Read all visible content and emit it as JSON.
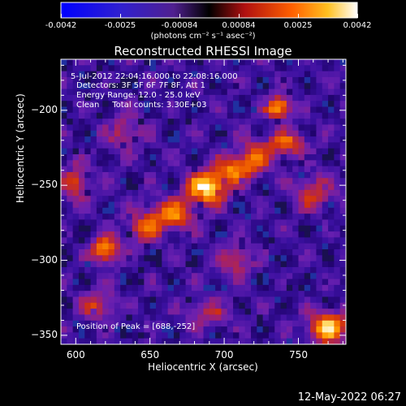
{
  "colors": {
    "colormap": [
      "#000000",
      "#1a0060",
      "#3a10a0",
      "#6a20b0",
      "#a02070",
      "#d03010",
      "#f06000",
      "#ff9a00",
      "#ffd040",
      "#ffffff"
    ],
    "colorbar_left": "#0000ff",
    "colorbar_right": "#ffffff"
  },
  "colorbar": {
    "ticks": [
      "-0.0042",
      "-0.0025",
      "-0.00084",
      "0.00084",
      "0.0025",
      "0.0042"
    ],
    "units_label": "(photons cm⁻² s⁻¹ asec⁻²)"
  },
  "annotations": {
    "time_range": "5-Jul-2012 22:04:16.000 to 22:08:16.000",
    "detectors": "Detectors: 3F 5F 6F 7F 8F, Att 1",
    "energy_range": "Energy Range: 12.0 - 25.0 keV",
    "clean_counts": "Clean     Total counts: 3.30E+03",
    "peak": "Position of Peak = [688,-252]"
  },
  "footer": {
    "timestamp": "12-May-2022 06:27"
  },
  "chart_data": {
    "type": "heatmap",
    "title": "Reconstructed RHESSI Image",
    "xlabel": "Heliocentric X (arcsec)",
    "ylabel": "Heliocentric Y (arcsec)",
    "xlim": [
      590,
      782
    ],
    "ylim": [
      -356,
      -166
    ],
    "xticks": [
      600,
      650,
      700,
      750
    ],
    "yticks": [
      -200,
      -250,
      -300,
      -350
    ],
    "xtick_labels": [
      "600",
      "650",
      "700",
      "750"
    ],
    "ytick_labels": [
      "−200",
      "−250",
      "−300",
      "−350"
    ],
    "grid": false,
    "peak": [
      688,
      -252
    ],
    "sources": [
      {
        "x": 688,
        "y": -252,
        "sx": 9,
        "sy": 7,
        "amp": 1.0
      },
      {
        "x": 705,
        "y": -240,
        "sx": 8,
        "sy": 6,
        "amp": 0.6
      },
      {
        "x": 665,
        "y": -270,
        "sx": 10,
        "sy": 7,
        "amp": 0.65
      },
      {
        "x": 720,
        "y": -232,
        "sx": 8,
        "sy": 8,
        "amp": 0.5
      },
      {
        "x": 742,
        "y": -222,
        "sx": 9,
        "sy": 6,
        "amp": 0.55
      },
      {
        "x": 737,
        "y": -198,
        "sx": 6,
        "sy": 5,
        "amp": 0.8
      },
      {
        "x": 620,
        "y": -293,
        "sx": 6,
        "sy": 6,
        "amp": 0.75
      },
      {
        "x": 770,
        "y": -345,
        "sx": 9,
        "sy": 7,
        "amp": 0.85
      },
      {
        "x": 645,
        "y": -278,
        "sx": 8,
        "sy": 8,
        "amp": 0.45
      },
      {
        "x": 760,
        "y": -255,
        "sx": 10,
        "sy": 8,
        "amp": 0.4
      },
      {
        "x": 600,
        "y": -248,
        "sx": 7,
        "sy": 9,
        "amp": 0.45
      },
      {
        "x": 632,
        "y": -215,
        "sx": 9,
        "sy": 8,
        "amp": 0.35
      },
      {
        "x": 708,
        "y": -300,
        "sx": 8,
        "sy": 8,
        "amp": 0.4
      },
      {
        "x": 615,
        "y": -330,
        "sx": 8,
        "sy": 7,
        "amp": 0.45
      },
      {
        "x": 690,
        "y": -335,
        "sx": 10,
        "sy": 6,
        "amp": 0.35
      }
    ]
  }
}
